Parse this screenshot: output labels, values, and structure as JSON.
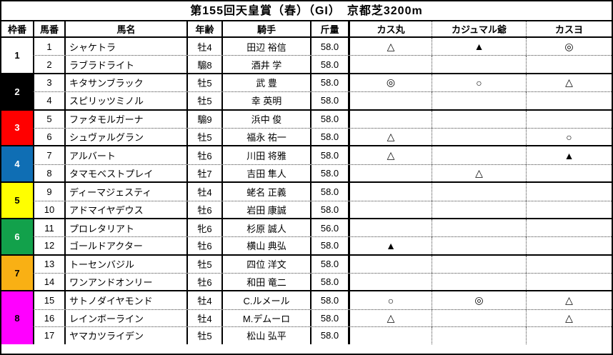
{
  "title": "第155回天皇賞（春）（GI）　京都芝3200m",
  "columns": [
    "枠番",
    "馬番",
    "馬名",
    "年齢",
    "騎手",
    "斤量",
    "カス丸",
    "カジュマル爺",
    "カスヨ"
  ],
  "frame_colors": {
    "1": {
      "bg": "#FFFFFF",
      "fg": "#000000"
    },
    "2": {
      "bg": "#000000",
      "fg": "#FFFFFF"
    },
    "3": {
      "bg": "#FF0000",
      "fg": "#FFFFFF"
    },
    "4": {
      "bg": "#0F6EB4",
      "fg": "#FFFFFF"
    },
    "5": {
      "bg": "#FFFF00",
      "fg": "#000000"
    },
    "6": {
      "bg": "#12A14B",
      "fg": "#FFFFFF"
    },
    "7": {
      "bg": "#F9B014",
      "fg": "#000000"
    },
    "8": {
      "bg": "#FF00FF",
      "fg": "#000000"
    }
  },
  "marks_legend": {
    "double_circle": "◎",
    "circle": "○",
    "black_triangle": "▲",
    "white_triangle": "△"
  },
  "rows": [
    {
      "frame": "1",
      "number": "1",
      "name": "シャケトラ",
      "age": "牡4",
      "jockey": "田辺 裕信",
      "weight": "58.0",
      "marks": [
        "△",
        "▲",
        "◎"
      ]
    },
    {
      "frame": "1",
      "number": "2",
      "name": "ラブラドライト",
      "age": "騸8",
      "jockey": "酒井 学",
      "weight": "58.0",
      "marks": [
        "",
        "",
        ""
      ]
    },
    {
      "frame": "2",
      "number": "3",
      "name": "キタサンブラック",
      "age": "牡5",
      "jockey": "武 豊",
      "weight": "58.0",
      "marks": [
        "◎",
        "○",
        "△"
      ]
    },
    {
      "frame": "2",
      "number": "4",
      "name": "スピリッツミノル",
      "age": "牡5",
      "jockey": "幸 英明",
      "weight": "58.0",
      "marks": [
        "",
        "",
        ""
      ]
    },
    {
      "frame": "3",
      "number": "5",
      "name": "ファタモルガーナ",
      "age": "騸9",
      "jockey": "浜中 俊",
      "weight": "58.0",
      "marks": [
        "",
        "",
        ""
      ]
    },
    {
      "frame": "3",
      "number": "6",
      "name": "シュヴァルグラン",
      "age": "牡5",
      "jockey": "福永 祐一",
      "weight": "58.0",
      "marks": [
        "△",
        "",
        "○"
      ]
    },
    {
      "frame": "4",
      "number": "7",
      "name": "アルバート",
      "age": "牡6",
      "jockey": "川田 将雅",
      "weight": "58.0",
      "marks": [
        "△",
        "",
        "▲"
      ]
    },
    {
      "frame": "4",
      "number": "8",
      "name": "タマモベストプレイ",
      "age": "牡7",
      "jockey": "吉田 隼人",
      "weight": "58.0",
      "marks": [
        "",
        "△",
        ""
      ]
    },
    {
      "frame": "5",
      "number": "9",
      "name": "ディーマジェスティ",
      "age": "牡4",
      "jockey": "蛯名 正義",
      "weight": "58.0",
      "marks": [
        "",
        "",
        ""
      ]
    },
    {
      "frame": "5",
      "number": "10",
      "name": "アドマイヤデウス",
      "age": "牡6",
      "jockey": "岩田 康誠",
      "weight": "58.0",
      "marks": [
        "",
        "",
        ""
      ]
    },
    {
      "frame": "6",
      "number": "11",
      "name": "プロレタリアト",
      "age": "牝6",
      "jockey": "杉原 誠人",
      "weight": "56.0",
      "marks": [
        "",
        "",
        ""
      ]
    },
    {
      "frame": "6",
      "number": "12",
      "name": "ゴールドアクター",
      "age": "牡6",
      "jockey": "横山 典弘",
      "weight": "58.0",
      "marks": [
        "▲",
        "",
        ""
      ]
    },
    {
      "frame": "7",
      "number": "13",
      "name": "トーセンバジル",
      "age": "牡5",
      "jockey": "四位 洋文",
      "weight": "58.0",
      "marks": [
        "",
        "",
        ""
      ]
    },
    {
      "frame": "7",
      "number": "14",
      "name": "ワンアンドオンリー",
      "age": "牡6",
      "jockey": "和田 竜二",
      "weight": "58.0",
      "marks": [
        "",
        "",
        ""
      ]
    },
    {
      "frame": "8",
      "number": "15",
      "name": "サトノダイヤモンド",
      "age": "牡4",
      "jockey": "C.ルメール",
      "weight": "58.0",
      "marks": [
        "○",
        "◎",
        "△"
      ]
    },
    {
      "frame": "8",
      "number": "16",
      "name": "レインボーライン",
      "age": "牡4",
      "jockey": "M.デムーロ",
      "weight": "58.0",
      "marks": [
        "△",
        "",
        "△"
      ]
    },
    {
      "frame": "8",
      "number": "17",
      "name": "ヤマカツライデン",
      "age": "牡5",
      "jockey": "松山 弘平",
      "weight": "58.0",
      "marks": [
        "",
        "",
        ""
      ]
    }
  ]
}
